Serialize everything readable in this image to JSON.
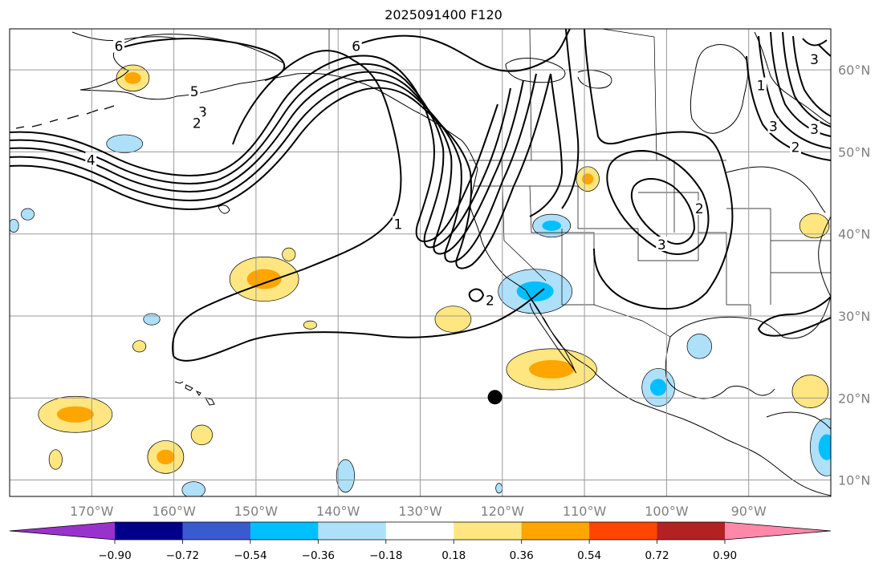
{
  "title": "2025091400 F120",
  "chart_data": {
    "type": "contour-map",
    "title": "2025091400 F120",
    "projection": "PlateCarree",
    "extent": {
      "lon": [
        -180,
        -80
      ],
      "lat": [
        8,
        65
      ]
    },
    "lon_ticks": [
      {
        "lon": -170,
        "label": "170°W"
      },
      {
        "lon": -160,
        "label": "160°W"
      },
      {
        "lon": -150,
        "label": "150°W"
      },
      {
        "lon": -140,
        "label": "140°W"
      },
      {
        "lon": -130,
        "label": "130°W"
      },
      {
        "lon": -120,
        "label": "120°W"
      },
      {
        "lon": -110,
        "label": "110°W"
      },
      {
        "lon": -100,
        "label": "100°W"
      },
      {
        "lon": -90,
        "label": "90°W"
      }
    ],
    "lat_ticks": [
      {
        "lat": 60,
        "label": "60°N"
      },
      {
        "lat": 50,
        "label": "50°N"
      },
      {
        "lat": 40,
        "label": "40°N"
      },
      {
        "lat": 30,
        "label": "30°N"
      },
      {
        "lat": 20,
        "label": "20°N"
      },
      {
        "lat": 10,
        "label": "10°N"
      }
    ],
    "colorbar": {
      "extend": "both",
      "ticks": [
        "−0.90",
        "−0.72",
        "−0.54",
        "−0.36",
        "−0.18",
        "0.18",
        "0.36",
        "0.54",
        "0.72",
        "0.90"
      ],
      "colors": [
        "#9932cc",
        "#00008b",
        "#3a5bcf",
        "#00bfff",
        "#aee0fa",
        "#ffffff",
        "#ffe680",
        "#ffa500",
        "#ff4500",
        "#b22222",
        "#ff88aa"
      ]
    },
    "contour_labels": [
      {
        "text": "6",
        "lon": -166.7,
        "lat": 62.8
      },
      {
        "text": "6",
        "lon": -137.8,
        "lat": 62.8
      },
      {
        "text": "5",
        "lon": -157.5,
        "lat": 57.3
      },
      {
        "text": "3",
        "lon": -156.5,
        "lat": 54.8
      },
      {
        "text": "2",
        "lon": -157.2,
        "lat": 53.4
      },
      {
        "text": "4",
        "lon": -170.1,
        "lat": 48.9
      },
      {
        "text": "1",
        "lon": -132.7,
        "lat": 41.1
      },
      {
        "text": "2",
        "lon": -121.5,
        "lat": 31.8
      },
      {
        "text": "2",
        "lon": -96.0,
        "lat": 43.0
      },
      {
        "text": "3",
        "lon": -100.6,
        "lat": 38.6
      },
      {
        "text": "1",
        "lon": -88.5,
        "lat": 58.0
      },
      {
        "text": "3",
        "lon": -87.0,
        "lat": 53.0
      },
      {
        "text": "2",
        "lon": -84.3,
        "lat": 50.5
      },
      {
        "text": "3",
        "lon": -82.0,
        "lat": 52.7
      },
      {
        "text": "3",
        "lon": -82.0,
        "lat": 61.2
      }
    ],
    "markers": [
      {
        "type": "dot",
        "lon": -120.9,
        "lat": 20.1
      }
    ],
    "anomaly_blobs": [
      {
        "sign": "pos",
        "level": 2,
        "lon": -165.0,
        "lat": 59.0,
        "rx": 2.0,
        "ry": 1.6
      },
      {
        "sign": "neg",
        "level": 1,
        "lon": -166.0,
        "lat": 51.0,
        "rx": 2.2,
        "ry": 1.1
      },
      {
        "sign": "pos",
        "level": 2,
        "lon": -149.0,
        "lat": 34.5,
        "rx": 4.2,
        "ry": 2.7
      },
      {
        "sign": "neg",
        "level": 1,
        "lon": -177.8,
        "lat": 42.4,
        "rx": 0.8,
        "ry": 0.7
      },
      {
        "sign": "pos",
        "level": 1,
        "lon": -146.0,
        "lat": 37.5,
        "rx": 0.8,
        "ry": 0.8
      },
      {
        "sign": "neg",
        "level": 1,
        "lon": -162.7,
        "lat": 29.6,
        "rx": 1.0,
        "ry": 0.7
      },
      {
        "sign": "pos",
        "level": 1,
        "lon": -143.4,
        "lat": 28.9,
        "rx": 0.8,
        "ry": 0.5
      },
      {
        "sign": "pos",
        "level": 1,
        "lon": -164.2,
        "lat": 26.3,
        "rx": 0.8,
        "ry": 0.7
      },
      {
        "sign": "pos",
        "level": 1,
        "lon": -126.0,
        "lat": 29.6,
        "rx": 2.2,
        "ry": 1.6
      },
      {
        "sign": "neg",
        "level": 2,
        "lon": -116.0,
        "lat": 33.0,
        "rx": 4.5,
        "ry": 2.7
      },
      {
        "sign": "pos",
        "level": 2,
        "lon": -114.0,
        "lat": 23.5,
        "rx": 5.5,
        "ry": 2.5
      },
      {
        "sign": "neg",
        "level": 2,
        "lon": -114.0,
        "lat": 41.0,
        "rx": 2.3,
        "ry": 1.4
      },
      {
        "sign": "pos",
        "level": 2,
        "lon": -109.6,
        "lat": 46.7,
        "rx": 1.4,
        "ry": 1.5
      },
      {
        "sign": "neg",
        "level": 2,
        "lon": -101.0,
        "lat": 21.3,
        "rx": 2.0,
        "ry": 2.3
      },
      {
        "sign": "neg",
        "level": 1,
        "lon": -96.0,
        "lat": 26.3,
        "rx": 1.5,
        "ry": 1.5
      },
      {
        "sign": "pos",
        "level": 1,
        "lon": -82.0,
        "lat": 41.0,
        "rx": 1.8,
        "ry": 1.5
      },
      {
        "sign": "pos",
        "level": 1,
        "lon": -82.5,
        "lat": 20.8,
        "rx": 2.2,
        "ry": 2.0
      },
      {
        "sign": "neg",
        "level": 2,
        "lon": -80.5,
        "lat": 14.0,
        "rx": 2.0,
        "ry": 3.5
      },
      {
        "sign": "pos",
        "level": 2,
        "lon": -172.0,
        "lat": 18.0,
        "rx": 4.5,
        "ry": 2.2
      },
      {
        "sign": "pos",
        "level": 2,
        "lon": -161.0,
        "lat": 12.8,
        "rx": 2.2,
        "ry": 2.0
      },
      {
        "sign": "pos",
        "level": 1,
        "lon": -174.4,
        "lat": 12.5,
        "rx": 0.8,
        "ry": 1.2
      },
      {
        "sign": "pos",
        "level": 1,
        "lon": -156.6,
        "lat": 15.5,
        "rx": 1.3,
        "ry": 1.2
      },
      {
        "sign": "neg",
        "level": 1,
        "lon": -157.6,
        "lat": 8.8,
        "rx": 1.4,
        "ry": 1.0
      },
      {
        "sign": "neg",
        "level": 1,
        "lon": -139.1,
        "lat": 10.5,
        "rx": 1.1,
        "ry": 2.0
      },
      {
        "sign": "neg",
        "level": 1,
        "lon": -120.4,
        "lat": 9.0,
        "rx": 0.4,
        "ry": 0.6
      },
      {
        "sign": "neg",
        "level": 1,
        "lon": -179.5,
        "lat": 41.0,
        "rx": 0.6,
        "ry": 0.8
      }
    ]
  }
}
